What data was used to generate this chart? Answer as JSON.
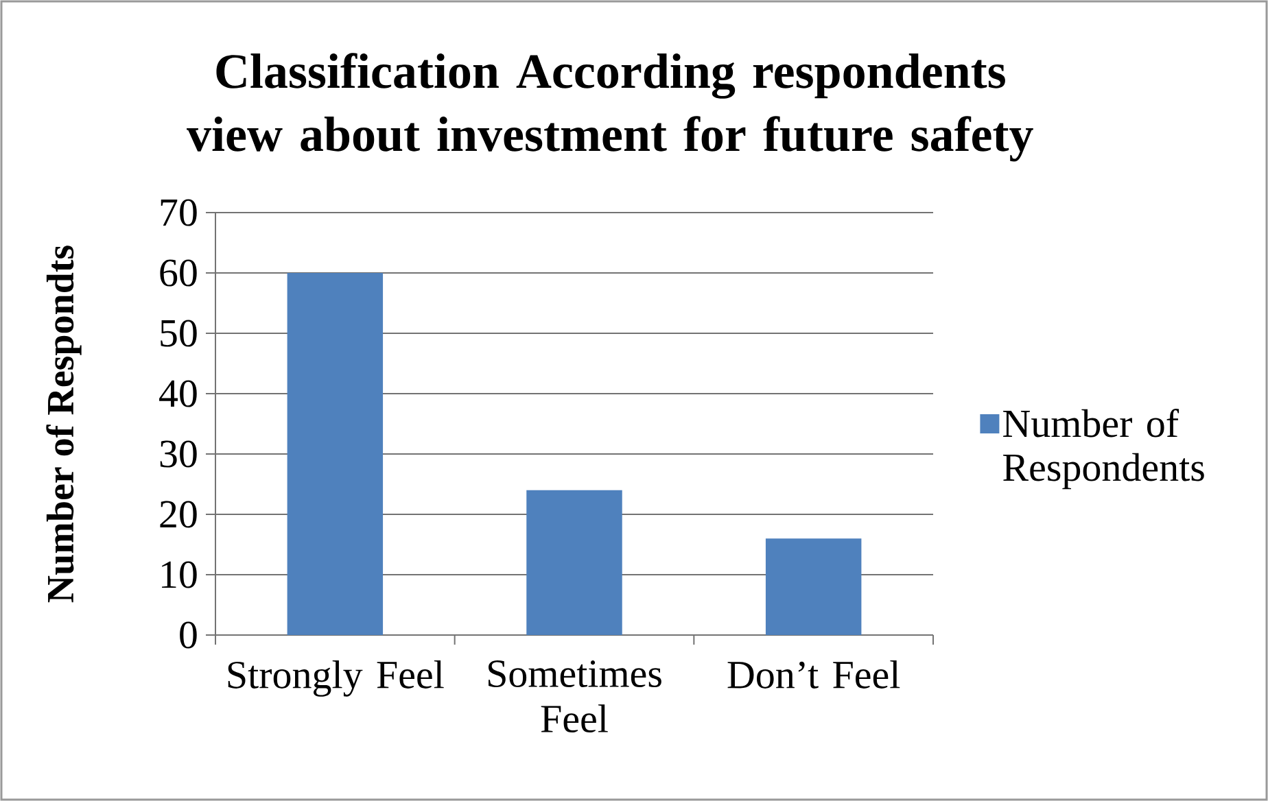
{
  "chart_data": {
    "type": "bar",
    "title": "Classification According respondents view about investment for future safety",
    "ylabel": "Number of Respondts",
    "categories": [
      "Strongly Feel",
      "Sometimes Feel",
      "Don’t Feel"
    ],
    "series": [
      {
        "name": "Number of Respondents",
        "color": "#4f81bd",
        "values": [
          60,
          24,
          16
        ]
      }
    ],
    "ylim": [
      0,
      70
    ],
    "yticks": [
      0,
      10,
      20,
      30,
      40,
      50,
      60,
      70
    ],
    "grid": "y",
    "legend": "right"
  }
}
